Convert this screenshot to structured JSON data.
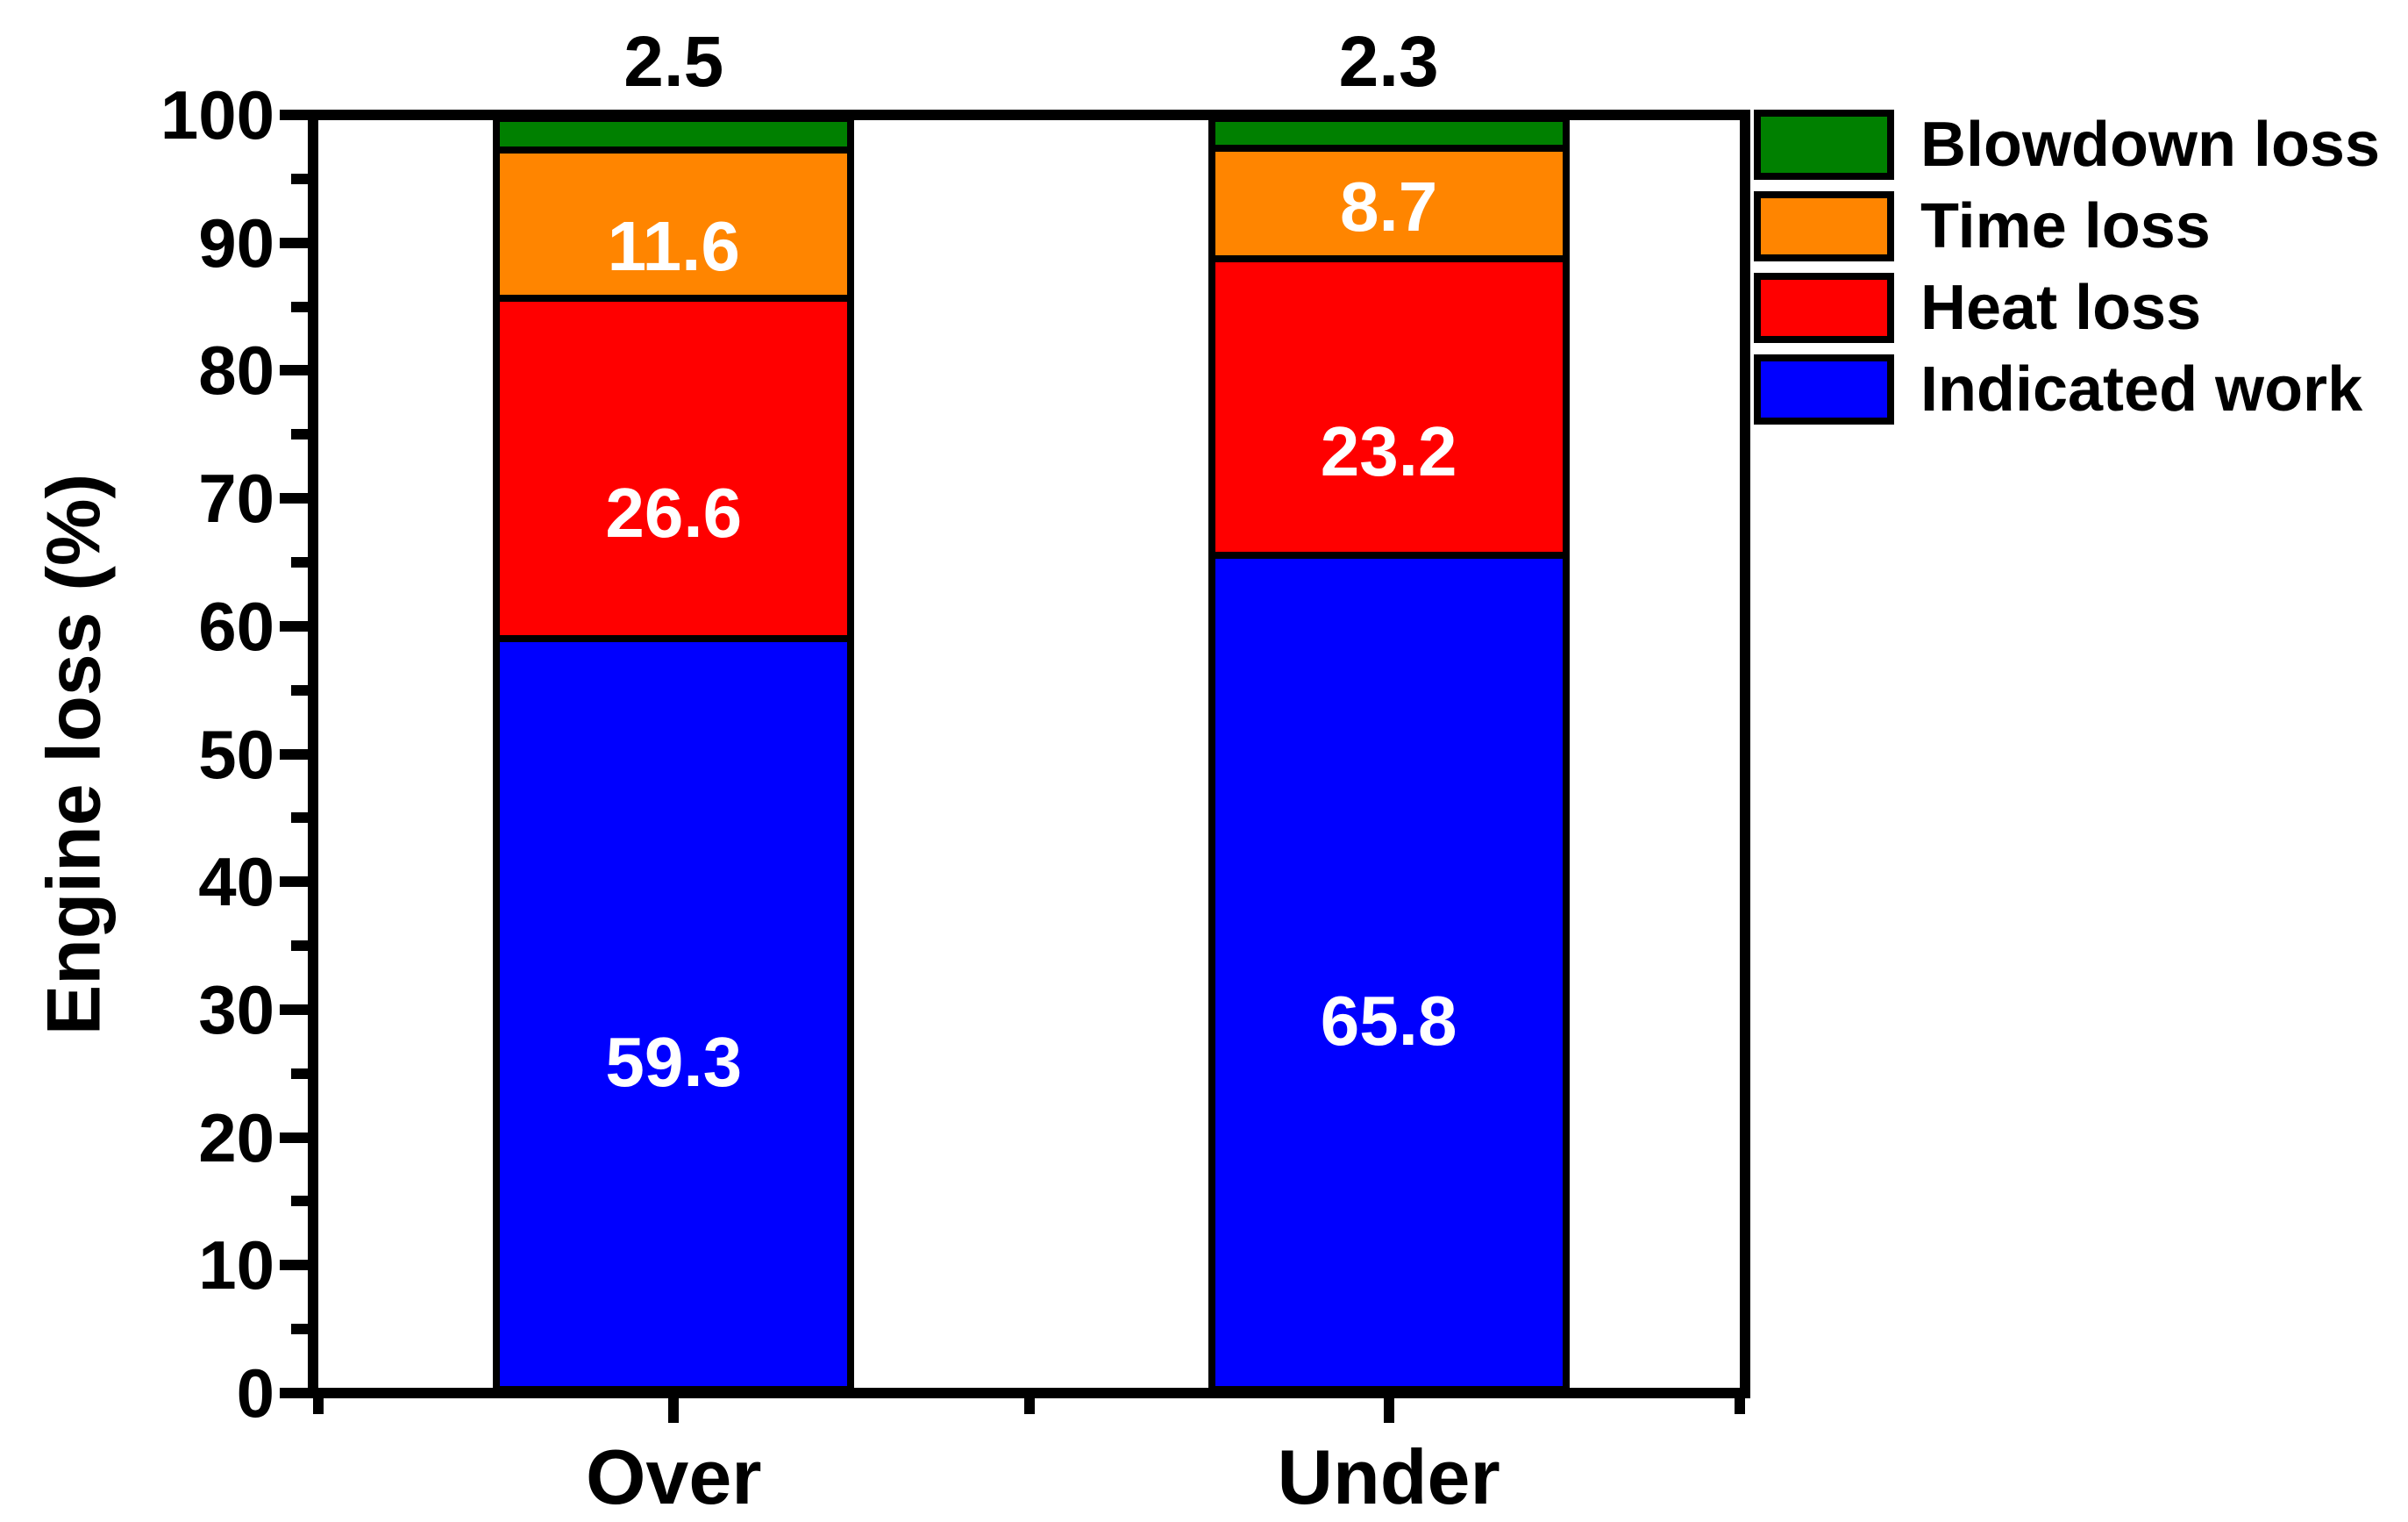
{
  "page": {
    "background": "#FFFFFF",
    "frame_color": "#000000"
  },
  "chart_data": {
    "type": "bar",
    "stacked": true,
    "orientation": "vertical",
    "title": "",
    "xlabel": "",
    "ylabel": "Engine loss (%)",
    "ylim": [
      0,
      100
    ],
    "y_major_tick_step": 10,
    "y_minor_tick_step": 5,
    "y_tick_labels": [
      "0",
      "10",
      "20",
      "30",
      "40",
      "50",
      "60",
      "70",
      "80",
      "90",
      "100"
    ],
    "categories": [
      "Over",
      "Under"
    ],
    "series": [
      {
        "name": "Indicated work",
        "color": "#0000FF",
        "values": [
          59.3,
          65.8
        ],
        "value_labels": [
          "59.3",
          "65.8"
        ],
        "label_placement": "inside",
        "label_color": "#FFFFFF"
      },
      {
        "name": "Heat loss",
        "color": "#FF0000",
        "values": [
          26.6,
          23.2
        ],
        "value_labels": [
          "26.6",
          "23.2"
        ],
        "label_placement": "inside",
        "label_color": "#FFFFFF"
      },
      {
        "name": "Time loss",
        "color": "#FF8500",
        "values": [
          11.6,
          8.7
        ],
        "value_labels": [
          "11.6",
          "8.7"
        ],
        "label_placement": "inside",
        "label_color": "#FFFFFF"
      },
      {
        "name": "Blowdown loss",
        "color": "#008000",
        "values": [
          2.5,
          2.3
        ],
        "value_labels": [
          "2.5",
          "2.3"
        ],
        "label_placement": "above",
        "label_color": "#000000"
      }
    ],
    "legend": {
      "position": "top-right-outside",
      "entries_top_to_bottom": [
        "Blowdown loss",
        "Time loss",
        "Heat loss",
        "Indicated work"
      ]
    },
    "grid": false
  }
}
